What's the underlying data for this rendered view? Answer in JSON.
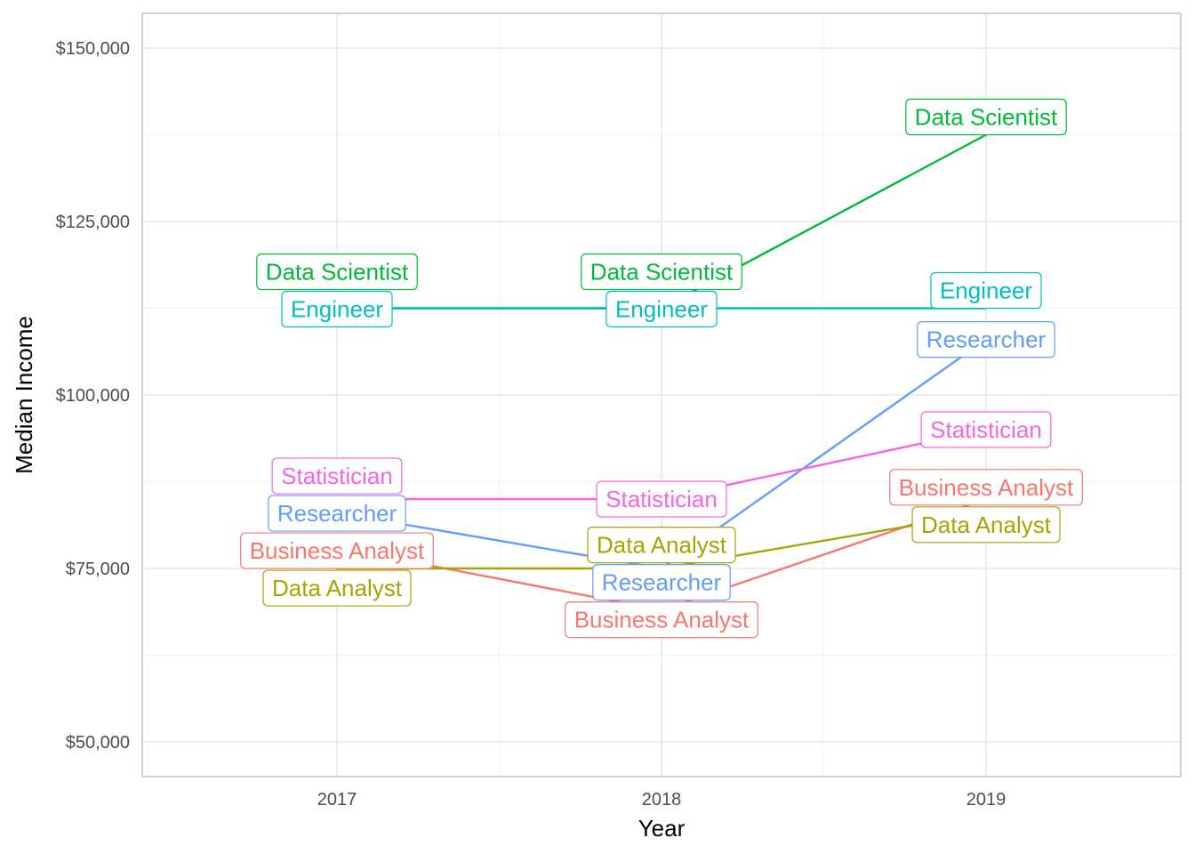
{
  "chart_data": {
    "type": "line",
    "title": "",
    "xlabel": "Year",
    "ylabel": "Median Income",
    "x": [
      2017,
      2018,
      2019
    ],
    "x_tick_labels": [
      "2017",
      "2018",
      "2019"
    ],
    "xlim": [
      2016.4,
      2019.6
    ],
    "ylim": [
      45000,
      155000
    ],
    "y_ticks": [
      50000,
      75000,
      100000,
      125000,
      150000
    ],
    "y_tick_labels": [
      "$50,000",
      "$75,000",
      "$100,000",
      "$125,000",
      "$150,000"
    ],
    "grid": true,
    "legend": "none",
    "series": [
      {
        "name": "Business Analyst",
        "color": "#F8766D",
        "values": [
          78000,
          69000,
          85000
        ],
        "labels": [
          "Business Analyst",
          "Business Analyst",
          "Business Analyst"
        ]
      },
      {
        "name": "Data Analyst",
        "color": "#A3A500",
        "values": [
          75000,
          75000,
          83000
        ],
        "labels": [
          "Data Analyst",
          "Data Analyst",
          "Data Analyst"
        ]
      },
      {
        "name": "Data Scientist",
        "color": "#00BA38",
        "values": [
          112500,
          112500,
          137500
        ],
        "labels": [
          "Data Scientist",
          "Data Scientist",
          "Data Scientist"
        ]
      },
      {
        "name": "Engineer",
        "color": "#00BFC4",
        "values": [
          112500,
          112500,
          112500
        ],
        "labels": [
          "Engineer",
          "Engineer",
          "Engineer"
        ]
      },
      {
        "name": "Researcher",
        "color": "#619CFF",
        "values": [
          83000,
          75000,
          108000
        ],
        "labels": [
          "Researcher",
          "Researcher",
          "Researcher"
        ]
      },
      {
        "name": "Statistician",
        "color": "#F564E3",
        "values": [
          85000,
          85000,
          95000
        ],
        "labels": [
          "Statistician",
          "Statistician",
          "Statistician"
        ]
      }
    ]
  }
}
